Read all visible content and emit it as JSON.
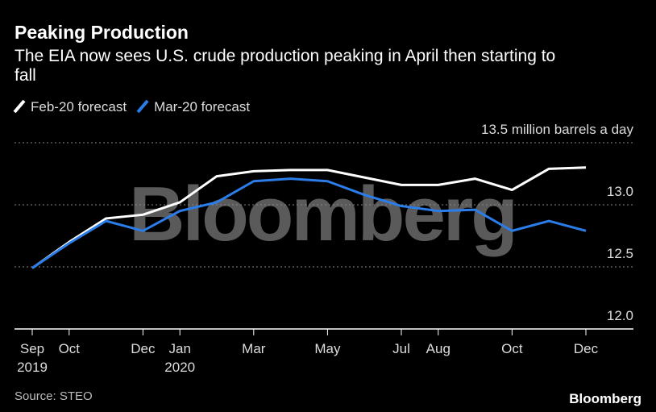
{
  "chart_data": {
    "type": "line",
    "title": "Peaking Production",
    "subtitle": "The EIA now sees U.S. crude production peaking in April then starting to fall",
    "categories": [
      "Sep",
      "Oct",
      null,
      "Dec",
      "Jan",
      null,
      "Mar",
      null,
      "May",
      null,
      "Jul",
      "Aug",
      null,
      "Oct",
      null,
      "Dec"
    ],
    "category_years": [
      "2019",
      null,
      null,
      null,
      "2020",
      null,
      null,
      null,
      null,
      null,
      null,
      null,
      null,
      null,
      null,
      null
    ],
    "series": [
      {
        "name": "Feb-20 forecast",
        "color": "#ffffff",
        "values": [
          12.49,
          12.7,
          12.89,
          12.92,
          13.02,
          13.23,
          13.27,
          13.28,
          13.28,
          13.22,
          13.16,
          13.16,
          13.21,
          13.12,
          13.29,
          13.3
        ]
      },
      {
        "name": "Mar-20 forecast",
        "color": "#2b7de9",
        "values": [
          12.49,
          12.69,
          12.87,
          12.79,
          12.95,
          13.02,
          13.19,
          13.21,
          13.19,
          13.08,
          12.99,
          12.95,
          12.96,
          12.79,
          12.87,
          12.79
        ]
      }
    ],
    "ylim": [
      12.0,
      13.5
    ],
    "yticks": [
      {
        "value": 12.0,
        "label": "12.0"
      },
      12.5,
      {
        "value": 13.0,
        "label": "13.0"
      },
      {
        "value": 13.5,
        "label": "13.5 million barrels a day"
      }
    ],
    "grid": true,
    "watermark": "Bloomberg",
    "source": "Source: STEO",
    "logo": "Bloomberg"
  }
}
